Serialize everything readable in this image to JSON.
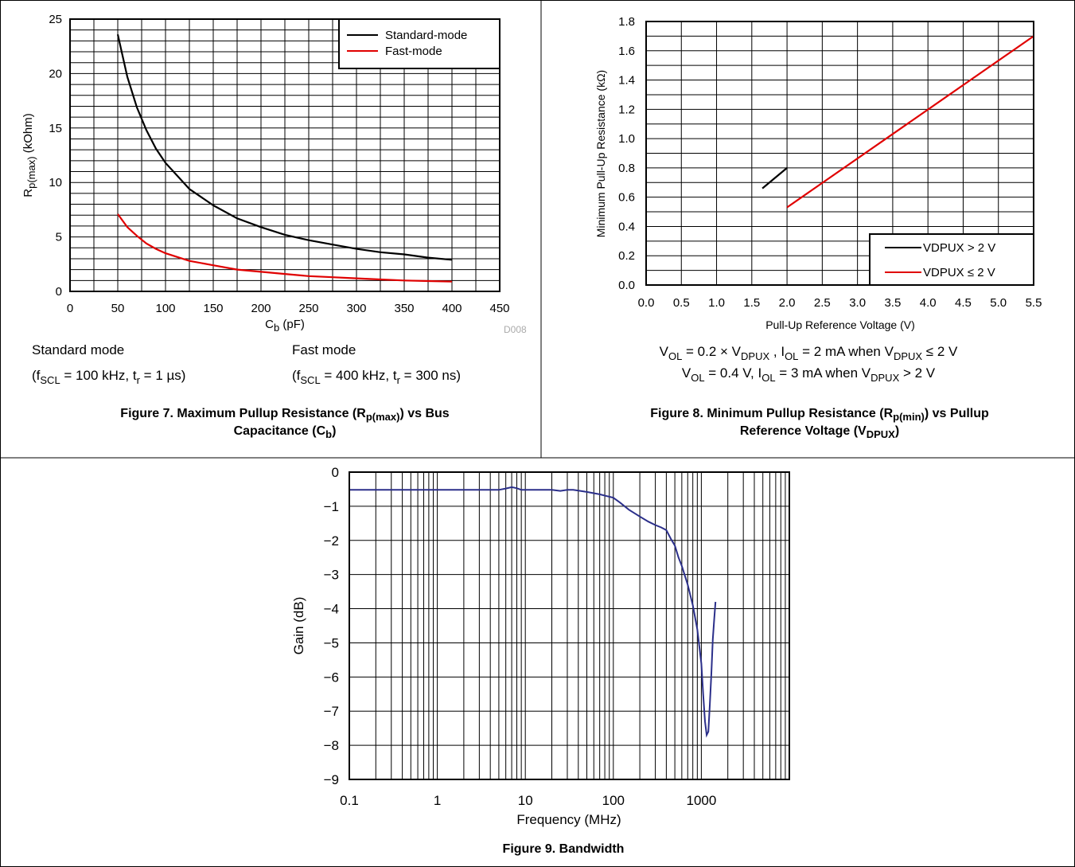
{
  "chart_data": [
    {
      "type": "line",
      "xlabel": "C",
      "xlabel_sub": "b",
      "xlabel_unit": " (pF)",
      "ylabel": "R",
      "ylabel_sub": "p(max)",
      "ylabel_unit": " (kOhm)",
      "xlim": [
        0,
        450
      ],
      "ylim": [
        0,
        25
      ],
      "x_ticks": [
        0,
        50,
        100,
        150,
        200,
        250,
        300,
        350,
        400,
        450
      ],
      "y_ticks": [
        0,
        5,
        10,
        15,
        20,
        25
      ],
      "grid": true,
      "legend_position": "top-right",
      "series": [
        {
          "name": "Standard-mode",
          "color": "#000000",
          "x": [
            50,
            60,
            70,
            80,
            90,
            100,
            125,
            150,
            175,
            200,
            225,
            250,
            275,
            300,
            325,
            350,
            375,
            400
          ],
          "y": [
            23.6,
            19.7,
            16.9,
            14.8,
            13.1,
            11.8,
            9.4,
            7.9,
            6.7,
            5.9,
            5.2,
            4.7,
            4.3,
            3.9,
            3.6,
            3.4,
            3.1,
            2.9
          ]
        },
        {
          "name": "Fast-mode",
          "color": "#e00000",
          "x": [
            50,
            60,
            70,
            80,
            90,
            100,
            125,
            150,
            175,
            200,
            225,
            250,
            275,
            300,
            325,
            350,
            375,
            400
          ],
          "y": [
            7.1,
            5.9,
            5.1,
            4.4,
            3.9,
            3.5,
            2.8,
            2.4,
            2.0,
            1.8,
            1.6,
            1.4,
            1.3,
            1.2,
            1.1,
            1.0,
            0.95,
            0.9
          ]
        }
      ],
      "watermark": "D008",
      "notes": {
        "standard_title": "Standard mode",
        "standard_cond_1": "(f",
        "standard_cond_sub_1": "SCL",
        "standard_cond_2": " = 100 kHz, t",
        "standard_cond_sub_2": "r",
        "standard_cond_3": " = 1 µs)",
        "fast_title": "Fast mode",
        "fast_cond_1": "(f",
        "fast_cond_sub_1": "SCL",
        "fast_cond_2": " = 400 kHz, t",
        "fast_cond_sub_2": "r",
        "fast_cond_3": " = 300 ns)"
      },
      "caption": {
        "line1_a": "Figure 7. Maximum Pullup Resistance (R",
        "line1_sub": "p(max)",
        "line1_b": ") vs Bus",
        "line2_a": "Capacitance (C",
        "line2_sub": "b",
        "line2_b": ")"
      }
    },
    {
      "type": "line",
      "xlabel": "Pull-Up Reference Voltage (V)",
      "ylabel": "Minimum Pull-Up Resistance (kΩ)",
      "xlim": [
        0,
        5.5
      ],
      "ylim": [
        0,
        1.8
      ],
      "x_ticks": [
        "0.0",
        "0.5",
        "1.0",
        "1.5",
        "2.0",
        "2.5",
        "3.0",
        "3.5",
        "4.0",
        "4.5",
        "5.0",
        "5.5"
      ],
      "y_ticks": [
        "0.0",
        "0.2",
        "0.4",
        "0.6",
        "0.8",
        "1.0",
        "1.2",
        "1.4",
        "1.6",
        "1.8"
      ],
      "grid": true,
      "legend_position": "bottom-right",
      "series": [
        {
          "name": "VDPUX > 2 V",
          "color": "#000000",
          "x": [
            1.65,
            2.0
          ],
          "y": [
            0.66,
            0.8
          ]
        },
        {
          "name": "VDPUX ≤ 2 V",
          "color": "#e00000",
          "x": [
            2.0,
            5.5
          ],
          "y": [
            0.53,
            1.7
          ]
        }
      ],
      "notes": {
        "line1_a": "V",
        "line1_sub1": "OL",
        "line1_b": " = 0.2 × V",
        "line1_sub2": "DPUX",
        "line1_c": " , I",
        "line1_sub3": "OL",
        "line1_d": " = 2 mA when V",
        "line1_sub4": "DPUX",
        "line1_e": " ≤ 2 V",
        "line2_a": "V",
        "line2_sub1": "OL",
        "line2_b": " = 0.4 V, I",
        "line2_sub2": "OL",
        "line2_c": " = 3 mA when V",
        "line2_sub3": "DPUX",
        "line2_d": " > 2 V"
      },
      "caption": {
        "line1_a": "Figure 8. Minimum Pullup Resistance (R",
        "line1_sub": "p(min)",
        "line1_b": ") vs Pullup",
        "line2_a": "Reference Voltage (V",
        "line2_sub": "DPUX",
        "line2_b": ")"
      }
    },
    {
      "type": "line",
      "xlabel": "Frequency (MHz)",
      "ylabel": "Gain (dB)",
      "x_scale": "log",
      "xlim": [
        0.1,
        10000
      ],
      "ylim": [
        -9,
        0
      ],
      "x_ticks": [
        "0.1",
        "1",
        "10",
        "100",
        "1000"
      ],
      "x_tick_values": [
        0.1,
        1,
        10,
        100,
        1000
      ],
      "y_ticks": [
        "0",
        "−1",
        "−2",
        "−3",
        "−4",
        "−5",
        "−6",
        "−7",
        "−8",
        "−9"
      ],
      "y_tick_values": [
        0,
        -1,
        -2,
        -3,
        -4,
        -5,
        -6,
        -7,
        -8,
        -9
      ],
      "grid": true,
      "series": [
        {
          "color": "#2b2f8a",
          "x": [
            0.1,
            1,
            5,
            6,
            7,
            8,
            9,
            10,
            20,
            25,
            30,
            35,
            50,
            70,
            90,
            100,
            120,
            150,
            200,
            250,
            300,
            350,
            400,
            450,
            500,
            550,
            600,
            700,
            800,
            900,
            1000,
            1050,
            1100,
            1150,
            1200,
            1250,
            1300,
            1350,
            1400,
            1450
          ],
          "y": [
            -0.52,
            -0.52,
            -0.52,
            -0.48,
            -0.44,
            -0.47,
            -0.52,
            -0.52,
            -0.52,
            -0.55,
            -0.52,
            -0.52,
            -0.58,
            -0.65,
            -0.72,
            -0.75,
            -0.9,
            -1.1,
            -1.3,
            -1.45,
            -1.55,
            -1.62,
            -1.7,
            -1.95,
            -2.15,
            -2.5,
            -2.75,
            -3.3,
            -3.9,
            -4.6,
            -5.6,
            -6.5,
            -7.3,
            -7.7,
            -7.6,
            -6.8,
            -5.9,
            -4.9,
            -4.3,
            -3.8
          ]
        }
      ],
      "caption": "Figure 9. Bandwidth"
    }
  ]
}
